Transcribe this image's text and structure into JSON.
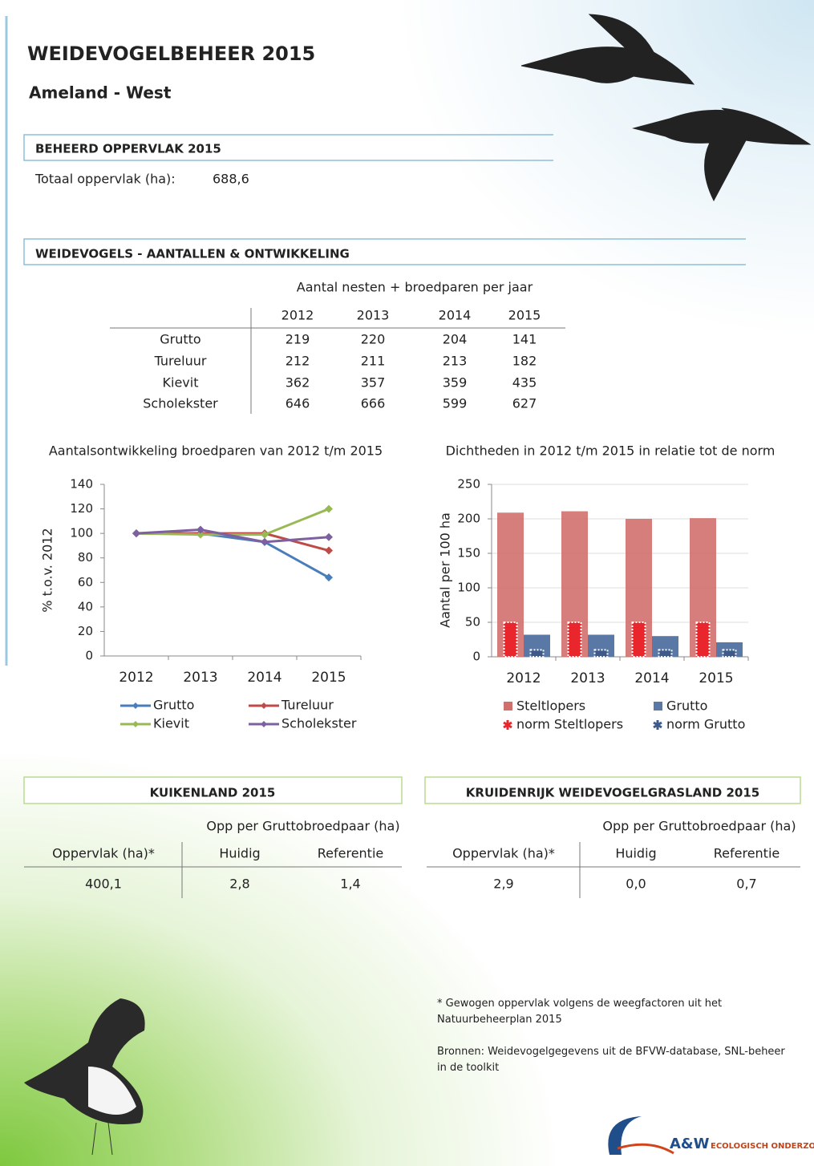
{
  "header": {
    "title": "WEIDEVOGELBEHEER 2015",
    "subtitle": "Ameland - West"
  },
  "area": {
    "heading": "BEHEERD OPPERVLAK 2015",
    "label": "Totaal oppervlak (ha):",
    "value": "688,6"
  },
  "birds": {
    "heading": "WEIDEVOGELS - AANTALLEN & ONTWIKKELING",
    "table": {
      "caption": "Aantal nesten + broedparen per jaar",
      "columns": [
        "2012",
        "2013",
        "2014",
        "2015"
      ],
      "rows": [
        {
          "name": "Grutto",
          "values": [
            219,
            220,
            204,
            141
          ]
        },
        {
          "name": "Tureluur",
          "values": [
            212,
            211,
            213,
            182
          ]
        },
        {
          "name": "Kievit",
          "values": [
            362,
            357,
            359,
            435
          ]
        },
        {
          "name": "Scholekster",
          "values": [
            646,
            666,
            599,
            627
          ]
        }
      ]
    }
  },
  "chart_data": [
    {
      "type": "line",
      "title": "Aantalsontwikkeling broedparen van 2012 t/m 2015",
      "y_label": "% t.o.v. 2012",
      "categories": [
        "2012",
        "2013",
        "2014",
        "2015"
      ],
      "ylim": [
        0,
        140
      ],
      "yticks": [
        0,
        20,
        40,
        60,
        80,
        100,
        120,
        140
      ],
      "grid": false,
      "series": [
        {
          "name": "Grutto",
          "color": "#4a7ebb",
          "values": [
            100,
            100,
            93,
            64
          ]
        },
        {
          "name": "Tureluur",
          "color": "#be4b48",
          "values": [
            100,
            100,
            100,
            86
          ]
        },
        {
          "name": "Kievit",
          "color": "#98b954",
          "values": [
            100,
            99,
            99,
            120
          ]
        },
        {
          "name": "Scholekster",
          "color": "#7d60a0",
          "values": [
            100,
            103,
            93,
            97
          ]
        }
      ]
    },
    {
      "type": "bar",
      "title": "Dichtheden in 2012 t/m 2015 in relatie tot de norm",
      "y_label": "Aantal per 100 ha",
      "categories": [
        "2012",
        "2013",
        "2014",
        "2015"
      ],
      "ylim": [
        0,
        250
      ],
      "yticks": [
        0,
        50,
        100,
        150,
        200,
        250
      ],
      "grid": true,
      "series": [
        {
          "name": "Steltlopers",
          "color": "#d0706d",
          "values": [
            209,
            211,
            200,
            201
          ]
        },
        {
          "name": "Grutto",
          "color": "#5a78a6",
          "values": [
            32,
            32,
            30,
            21
          ]
        },
        {
          "name": "norm Steltlopers",
          "color": "#e8262b",
          "values": [
            50,
            50,
            50,
            50
          ]
        },
        {
          "name": "norm Grutto",
          "color": "#3d5a8a",
          "values": [
            10,
            10,
            10,
            10
          ]
        }
      ]
    }
  ],
  "kuikenland": {
    "heading": "KUIKENLAND 2015",
    "group": "Opp per Gruttobroedpaar (ha)",
    "columns": [
      "Oppervlak (ha)*",
      "Huidig",
      "Referentie"
    ],
    "row": [
      "400,1",
      "2,8",
      "1,4"
    ]
  },
  "kruidenrijk": {
    "heading": "KRUIDENRIJK WEIDEVOGELGRASLAND 2015",
    "group": "Opp per Gruttobroedpaar (ha)",
    "columns": [
      "Oppervlak (ha)*",
      "Huidig",
      "Referentie"
    ],
    "row": [
      "2,9",
      "0,0",
      "0,7"
    ]
  },
  "notes": [
    "* Gewogen oppervlak volgens de weegfactoren uit het Natuurbeheerplan 2015",
    "Bronnen: Weidevogelgegevens uit de BFVW-database, SNL-beheer in de toolkit"
  ],
  "logo": {
    "name": "A&W",
    "tagline": "ECOLOGISCH ONDERZOEK"
  }
}
